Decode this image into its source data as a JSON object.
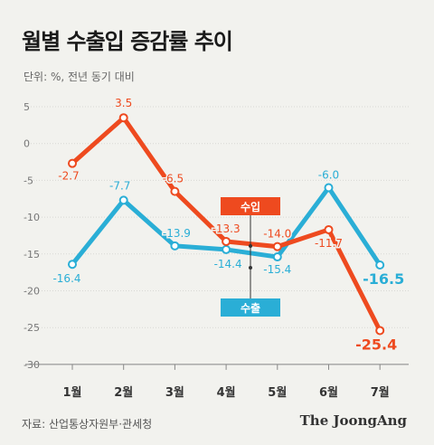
{
  "header": {
    "title": "월별 수출입 증감률 추이",
    "subtitle": "단위: %, 전년 동기 대비"
  },
  "footer": {
    "source": "자료: 산업통상자원부·관세청",
    "brand": "The JoongAng"
  },
  "colors": {
    "import": "#ee4a1f",
    "export": "#2aaed6"
  },
  "chart_data": {
    "type": "line",
    "categories": [
      "1월",
      "2월",
      "3월",
      "4월",
      "5월",
      "6월",
      "7월"
    ],
    "yticks": [
      5,
      0,
      -5,
      -10,
      -15,
      -20,
      -25,
      -30
    ],
    "ylim": [
      -30,
      5
    ],
    "grid": true,
    "series": [
      {
        "name": "수입",
        "values": [
          -2.7,
          3.5,
          -6.5,
          -13.3,
          -14.0,
          -11.7,
          -25.4
        ],
        "labels": [
          "-2.7",
          "3.5",
          "-6.5",
          "-13.3",
          "-14.0",
          "-11.7",
          "-25.4"
        ]
      },
      {
        "name": "수출",
        "values": [
          -16.4,
          -7.7,
          -13.9,
          -14.4,
          -15.4,
          -6.0,
          -16.5
        ],
        "labels": [
          "-16.4",
          "-7.7",
          "-13.9",
          "-14.4",
          "-15.4",
          "-6.0",
          "-16.5"
        ]
      }
    ]
  }
}
